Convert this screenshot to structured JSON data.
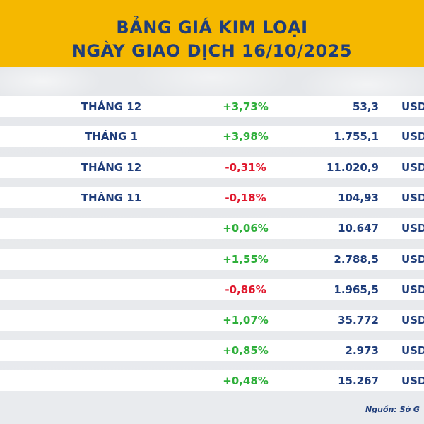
{
  "header": {
    "title_line1": "BẢNG GIÁ KIM LOẠI",
    "title_line2": "NGÀY GIAO DỊCH 16/10/2025"
  },
  "rows": [
    {
      "month": "THÁNG 12",
      "change": "+3,73%",
      "direction": "up",
      "price": "53,3",
      "unit": "USD"
    },
    {
      "month": "THÁNG 1",
      "change": "+3,98%",
      "direction": "up",
      "price": "1.755,1",
      "unit": "USD"
    },
    {
      "month": "THÁNG 12",
      "change": "-0,31%",
      "direction": "down",
      "price": "11.020,9",
      "unit": "USD"
    },
    {
      "month": "THÁNG 11",
      "change": "-0,18%",
      "direction": "down",
      "price": "104,93",
      "unit": "USD"
    },
    {
      "month": "",
      "change": "+0,06%",
      "direction": "up",
      "price": "10.647",
      "unit": "USD"
    },
    {
      "month": "",
      "change": "+1,55%",
      "direction": "up",
      "price": "2.788,5",
      "unit": "USD"
    },
    {
      "month": "",
      "change": "-0,86%",
      "direction": "down",
      "price": "1.965,5",
      "unit": "USD"
    },
    {
      "month": "",
      "change": "+1,07%",
      "direction": "up",
      "price": "35.772",
      "unit": "USD"
    },
    {
      "month": "",
      "change": "+0,85%",
      "direction": "up",
      "price": "2.973",
      "unit": "USD"
    },
    {
      "month": "",
      "change": "+0,48%",
      "direction": "up",
      "price": "15.267",
      "unit": "USD"
    }
  ],
  "source": "Nguồn: Sở G",
  "colors": {
    "header_bg": "#f5b800",
    "title_text": "#1f3d7a",
    "up": "#2eaf3a",
    "down": "#e0182d"
  }
}
